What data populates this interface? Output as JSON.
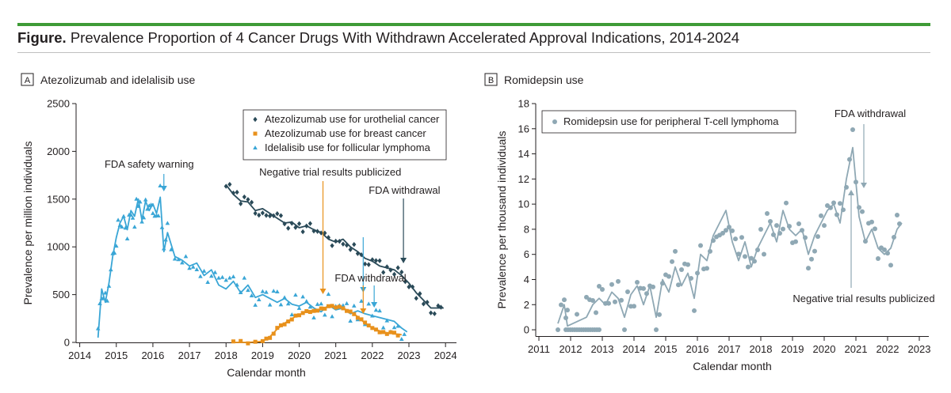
{
  "figure": {
    "title_bold": "Figure.",
    "title_rest": "Prevalence Proportion of 4 Cancer Drugs With Withdrawn Accelerated Approval Indications, 2014-2024",
    "colors": {
      "rule": "#3e9b36",
      "uro": "#2a4a58",
      "breast": "#e8911c",
      "idela": "#3aa6d6",
      "romi": "#8fa8b4"
    }
  },
  "chart_data": [
    {
      "panel": "A",
      "type": "line",
      "title": "Atezolizumab and idelalisib use",
      "xlabel": "Calendar month",
      "ylabel": "Prevalence per million individuals",
      "xlim": [
        2013.9,
        2024.3
      ],
      "ylim": [
        0,
        2500
      ],
      "xticks": [
        "2014",
        "2015",
        "2016",
        "2017",
        "2018",
        "2019",
        "2020",
        "2021",
        "2022",
        "2023",
        "2024"
      ],
      "yticks": [
        "0",
        "500",
        "1000",
        "1500",
        "2000",
        "2500"
      ],
      "legend": [
        "Atezolizumab use for urothelial cancer",
        "Atezolizumab use for breast cancer",
        "Idelalisib use for follicular lymphoma"
      ],
      "series": [
        {
          "name": "Idelalisib use for follicular lymphoma",
          "x": [
            2014.5,
            2014.6,
            2014.7,
            2014.8,
            2014.9,
            2015.0,
            2015.1,
            2015.2,
            2015.3,
            2015.4,
            2015.5,
            2015.6,
            2015.7,
            2015.8,
            2015.9,
            2016.0,
            2016.1,
            2016.2,
            2016.3,
            2016.4,
            2016.6,
            2016.8,
            2017.0,
            2017.2,
            2017.4,
            2017.6,
            2017.8,
            2018.0,
            2018.2,
            2018.4,
            2018.6,
            2018.8,
            2019.0,
            2019.2,
            2019.4,
            2019.6,
            2019.8,
            2020.0,
            2020.2,
            2020.4,
            2020.6,
            2020.8,
            2021.0,
            2021.2,
            2021.4,
            2021.6,
            2021.8,
            2022.0,
            2022.2,
            2022.4,
            2022.6,
            2022.8,
            2022.95
          ],
          "values": [
            50,
            560,
            420,
            620,
            900,
            1100,
            1250,
            1320,
            1180,
            1380,
            1320,
            1500,
            1280,
            1480,
            1380,
            1450,
            1350,
            1520,
            950,
            1150,
            900,
            860,
            800,
            830,
            700,
            760,
            600,
            560,
            640,
            520,
            600,
            470,
            500,
            460,
            420,
            460,
            400,
            380,
            420,
            360,
            320,
            390,
            340,
            360,
            300,
            330,
            300,
            280,
            260,
            240,
            220,
            150,
            110
          ]
        },
        {
          "name": "Atezolizumab use for urothelial cancer",
          "x": [
            2018.0,
            2018.2,
            2018.4,
            2018.6,
            2018.8,
            2019.0,
            2019.2,
            2019.4,
            2019.6,
            2019.8,
            2020.0,
            2020.2,
            2020.4,
            2020.6,
            2020.8,
            2021.0,
            2021.2,
            2021.4,
            2021.6,
            2021.8,
            2022.0,
            2022.2,
            2022.4,
            2022.6,
            2022.8,
            2023.0,
            2023.2,
            2023.4,
            2023.6,
            2023.8,
            2023.95
          ],
          "values": [
            1650,
            1550,
            1480,
            1470,
            1380,
            1400,
            1350,
            1300,
            1250,
            1260,
            1200,
            1220,
            1180,
            1150,
            1080,
            1050,
            1080,
            1000,
            950,
            880,
            850,
            800,
            780,
            760,
            700,
            620,
            520,
            440,
            360,
            360,
            360
          ]
        },
        {
          "name": "Atezolizumab use for breast cancer",
          "x": [
            2018.2,
            2018.6,
            2019.0,
            2019.2,
            2019.4,
            2019.6,
            2019.8,
            2020.0,
            2020.2,
            2020.4,
            2020.6,
            2020.8,
            2021.0,
            2021.2,
            2021.4,
            2021.6,
            2021.8,
            2022.0,
            2022.2,
            2022.4,
            2022.6,
            2022.8
          ],
          "values": [
            0,
            0,
            10,
            60,
            140,
            200,
            250,
            290,
            320,
            330,
            350,
            370,
            370,
            360,
            320,
            270,
            200,
            150,
            120,
            100,
            90,
            80
          ]
        }
      ],
      "annotations": [
        "FDA safety warning",
        "Negative trial results publicized",
        "FDA withdrawal",
        "FDA withdrawal"
      ]
    },
    {
      "panel": "B",
      "type": "line",
      "title": "Romidepsin use",
      "xlabel": "Calendar month",
      "ylabel": "Prevalence per thousand individuals",
      "xlim": [
        2010.9,
        2023.3
      ],
      "ylim": [
        -0.5,
        18
      ],
      "xticks": [
        "2011",
        "2012",
        "2013",
        "2014",
        "2015",
        "2016",
        "2017",
        "2018",
        "2019",
        "2020",
        "2021",
        "2022",
        "2023"
      ],
      "yticks": [
        "0",
        "2",
        "4",
        "6",
        "8",
        "10",
        "12",
        "14",
        "16",
        "18"
      ],
      "legend": [
        "Romidepsin use for peripheral T-cell lymphoma"
      ],
      "series": [
        {
          "name": "Romidepsin use for peripheral T-cell lymphoma",
          "x": [
            2011.6,
            2011.8,
            2011.9,
            2012.5,
            2012.7,
            2012.9,
            2013.1,
            2013.3,
            2013.5,
            2013.7,
            2013.9,
            2014.1,
            2014.3,
            2014.5,
            2014.7,
            2014.9,
            2015.1,
            2015.3,
            2015.5,
            2015.7,
            2015.9,
            2016.1,
            2016.3,
            2016.5,
            2016.7,
            2016.9,
            2017.1,
            2017.3,
            2017.5,
            2017.7,
            2017.9,
            2018.1,
            2018.3,
            2018.5,
            2018.7,
            2018.9,
            2019.1,
            2019.3,
            2019.5,
            2019.7,
            2019.9,
            2020.1,
            2020.3,
            2020.5,
            2020.7,
            2020.9,
            2021.1,
            2021.3,
            2021.5,
            2021.7,
            2021.9,
            2022.1,
            2022.3,
            2022.45
          ],
          "values": [
            0.5,
            2.0,
            0.3,
            1.0,
            2.0,
            2.5,
            2.0,
            3.0,
            2.5,
            1.0,
            2.8,
            3.5,
            2.0,
            3.5,
            1.0,
            4.0,
            3.0,
            5.0,
            3.5,
            4.5,
            2.5,
            6.0,
            5.5,
            7.5,
            8.5,
            9.5,
            7.0,
            5.5,
            7.0,
            5.0,
            6.5,
            7.5,
            8.5,
            7.0,
            9.5,
            8.0,
            7.5,
            8.0,
            6.0,
            7.5,
            8.5,
            9.5,
            10.0,
            8.5,
            12.0,
            14.5,
            9.0,
            7.0,
            8.0,
            6.5,
            6.0,
            6.5,
            8.0,
            8.5
          ]
        }
      ],
      "annotations": [
        "FDA withdrawal",
        "Negative trial results publicized"
      ]
    }
  ]
}
